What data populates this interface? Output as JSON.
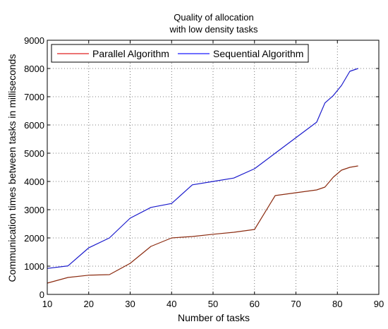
{
  "chart_data": {
    "type": "line",
    "title": [
      "Quality of allocation",
      "with low density tasks"
    ],
    "xlabel": "Number of tasks",
    "ylabel": "Communication times between tasks in milliseconds",
    "xlim": [
      10,
      90
    ],
    "ylim": [
      0,
      9000
    ],
    "xticks": [
      10,
      20,
      30,
      40,
      50,
      60,
      70,
      80,
      90
    ],
    "yticks": [
      0,
      1000,
      2000,
      3000,
      4000,
      5000,
      6000,
      7000,
      8000,
      9000
    ],
    "grid": true,
    "legend_position": "top-left",
    "series": [
      {
        "name": "Parallel Algorithm",
        "legend_color": "#e02020",
        "line_color": "#8b2b10",
        "x": [
          10,
          15,
          20,
          25,
          30,
          35,
          40,
          45,
          50,
          55,
          60,
          65,
          70,
          75,
          77,
          79,
          81,
          83,
          85
        ],
        "y": [
          400,
          600,
          680,
          700,
          1100,
          1700,
          2000,
          2050,
          2130,
          2200,
          2300,
          3500,
          3600,
          3700,
          3800,
          4150,
          4400,
          4500,
          4550
        ]
      },
      {
        "name": "Sequential Algorithm",
        "legend_color": "#1a1aff",
        "line_color": "#1a1acc",
        "x": [
          10,
          15,
          20,
          25,
          30,
          35,
          40,
          45,
          50,
          55,
          60,
          65,
          70,
          75,
          77,
          79,
          81,
          83,
          85
        ],
        "y": [
          920,
          1010,
          1650,
          2000,
          2700,
          3080,
          3220,
          3880,
          4000,
          4120,
          4450,
          5000,
          5550,
          6100,
          6780,
          7040,
          7400,
          7900,
          8000
        ]
      }
    ]
  }
}
